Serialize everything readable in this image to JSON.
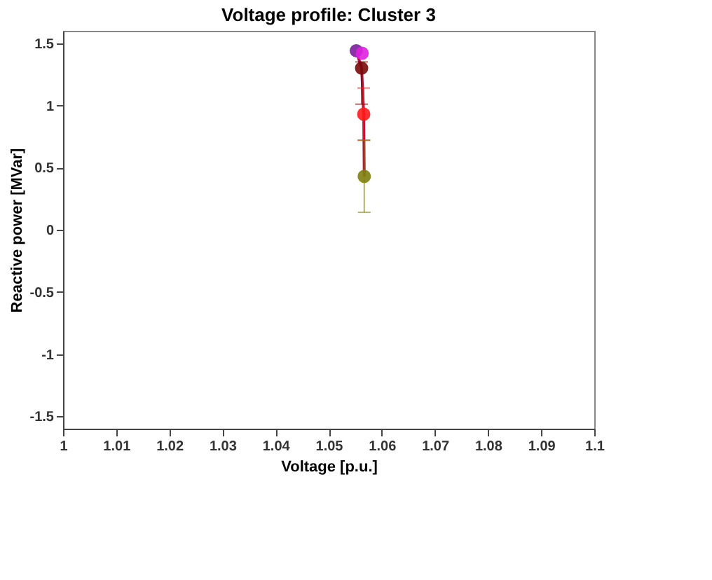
{
  "chart_data": {
    "type": "scatter",
    "title": "Voltage profile: Cluster 3",
    "xlabel": "Voltage [p.u.]",
    "ylabel": "Reactive power [MVar]",
    "xlim": [
      1,
      1.1
    ],
    "xticks": [
      1,
      1.01,
      1.02,
      1.03,
      1.04,
      1.05,
      1.06,
      1.07,
      1.08,
      1.09,
      1.1
    ],
    "ylim": [
      -1.6,
      1.6
    ],
    "yticks": [
      -1.5,
      -1,
      -0.5,
      0,
      0.5,
      1,
      1.5
    ],
    "grid": false,
    "series": [
      {
        "type": "line",
        "color": "#b0103a",
        "x": [
          1.0552,
          1.0562,
          1.0566,
          1.0567
        ],
        "values": [
          1.44,
          1.3,
          0.93,
          0.43
        ]
      },
      {
        "marker": "circle",
        "x": [
          1.0552,
          1.0563,
          1.0562,
          1.0566,
          1.0567
        ],
        "values": [
          1.44,
          1.42,
          1.3,
          0.93,
          0.43
        ],
        "colors": [
          "#7a1f9a",
          "#e020e0",
          "#7a0a0a",
          "#ff1a1a",
          "#808010"
        ],
        "errors": [
          null,
          null,
          [
            1.01,
            1.35
          ],
          [
            0.72,
            1.14
          ],
          [
            0.14,
            0.72
          ]
        ]
      }
    ]
  }
}
